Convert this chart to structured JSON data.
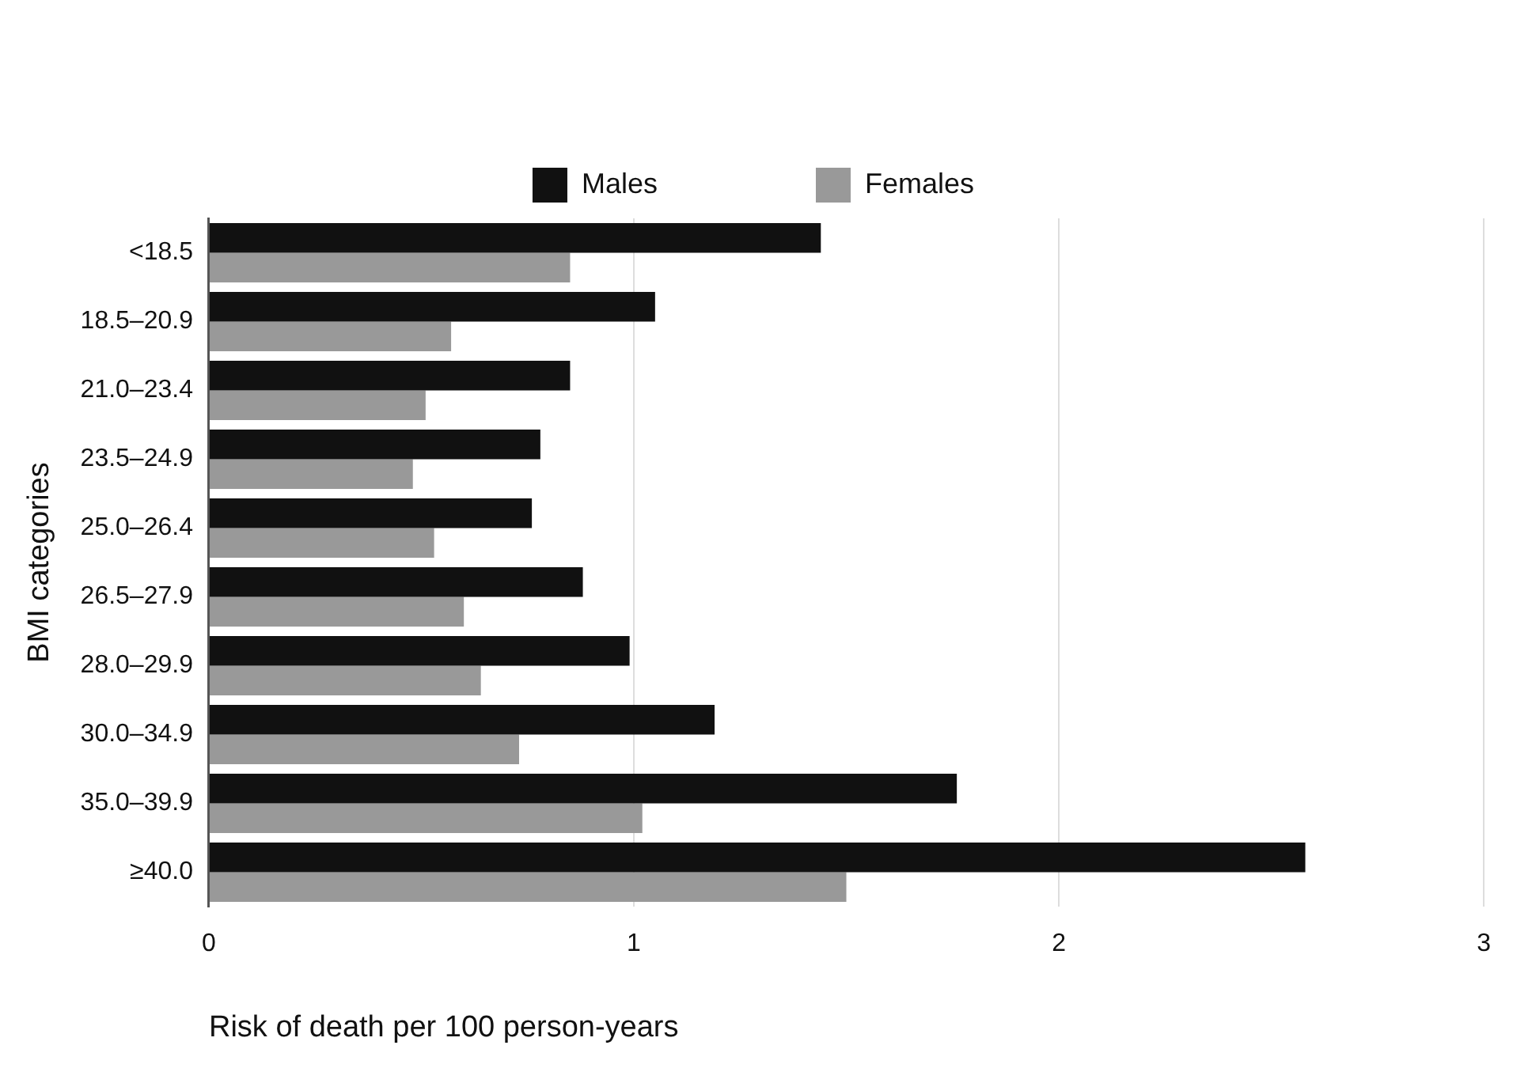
{
  "chart_data": {
    "type": "bar",
    "orientation": "horizontal",
    "xlabel": "Risk of death per 100 person-years",
    "ylabel": "BMI categories",
    "categories": [
      "<18.5",
      "18.5–20.9",
      "21.0–23.4",
      "23.5–24.9",
      "25.0–26.4",
      "26.5–27.9",
      "28.0–29.9",
      "30.0–34.9",
      "35.0–39.9",
      "≥40.0"
    ],
    "series": [
      {
        "name": "Males",
        "color": "#111111",
        "values": [
          1.44,
          1.05,
          0.85,
          0.78,
          0.76,
          0.88,
          0.99,
          1.19,
          1.76,
          2.58
        ]
      },
      {
        "name": "Females",
        "color": "#999999",
        "values": [
          0.85,
          0.57,
          0.51,
          0.48,
          0.53,
          0.6,
          0.64,
          0.73,
          1.02,
          1.5
        ]
      }
    ],
    "xlim": [
      0,
      3
    ],
    "xticks": [
      0,
      1,
      2,
      3
    ],
    "grid": "x",
    "legend": "top"
  }
}
